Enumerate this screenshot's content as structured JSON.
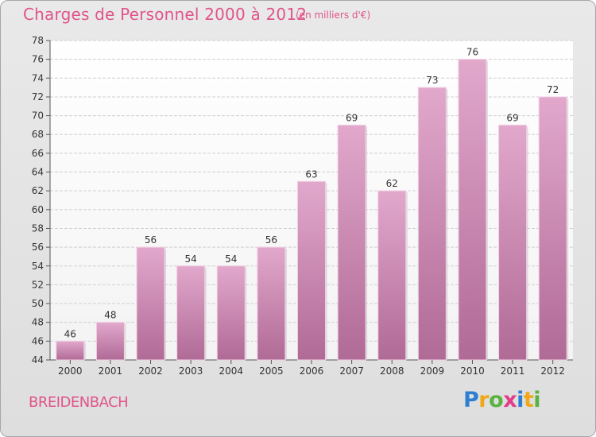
{
  "title": "Charges de Personnel 2000 à 2012",
  "subtitle": "(en milliers d'€)",
  "commune": "BREIDENBACH",
  "logo": {
    "text": "Proxiti",
    "colors": [
      "#2f7fd1",
      "#f0a818",
      "#59b340",
      "#e23c8a",
      "#2f7fd1",
      "#f0a818",
      "#59b340"
    ]
  },
  "colors": {
    "accent": "#e0548a",
    "bar_top": "#e2a8cc",
    "bar_bottom": "#b06a96",
    "axis_text": "#333333"
  },
  "chart_data": {
    "type": "bar",
    "categories": [
      "2000",
      "2001",
      "2002",
      "2003",
      "2004",
      "2005",
      "2006",
      "2007",
      "2008",
      "2009",
      "2010",
      "2011",
      "2012"
    ],
    "values": [
      46,
      48,
      56,
      54,
      54,
      56,
      63,
      69,
      62,
      73,
      76,
      69,
      72
    ],
    "ylim": [
      44,
      78
    ],
    "yticks": [
      44,
      46,
      48,
      50,
      52,
      54,
      56,
      58,
      60,
      62,
      64,
      66,
      68,
      70,
      72,
      74,
      76,
      78
    ],
    "grid": true,
    "title": "Charges de Personnel 2000 à 2012",
    "xlabel": "",
    "ylabel": ""
  }
}
